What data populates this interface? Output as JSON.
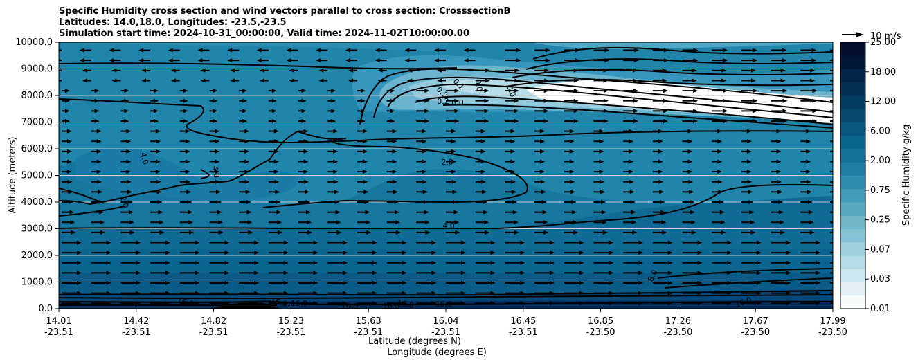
{
  "title": {
    "line1": "Specific Humidity cross section and wind vectors parallel to cross section: CrosssectionB",
    "line2": "Latitudes: 14.0,18.0, Longitudes: -23.5,-23.5",
    "line3": "Simulation start time: 2024-10-31_00:00:00, Valid time: 2024-11-02T10:00:00.00"
  },
  "quiver_key": {
    "label": "10 m/s"
  },
  "colorbar": {
    "label": "Specific Humidity g/kg",
    "levels": [
      "0.01",
      "0.03",
      "0.07",
      "0.25",
      "0.75",
      "2.00",
      "6.00",
      "12.00",
      "18.00",
      "25.00"
    ],
    "colors": [
      "#f7fbfc",
      "#e3f1f5",
      "#cce6ee",
      "#b5dbe6",
      "#9dcfdd",
      "#86c3d4",
      "#6fb6cb",
      "#58a9c2",
      "#429cb8",
      "#2f8eae",
      "#1f80a3",
      "#137296",
      "#0b6489",
      "#08577c",
      "#064a6f",
      "#053d62",
      "#043055",
      "#032448",
      "#02183b",
      "#020f2f"
    ]
  },
  "chart_data": {
    "type": "contourf",
    "title": "Specific Humidity cross section and wind vectors parallel to cross section: CrosssectionB",
    "xlabel_lat": "Latitude (degrees N)",
    "xlabel_lon": "Longitude (degrees E)",
    "ylabel": "Altitude (meters)",
    "ylim": [
      0,
      10000
    ],
    "yticks": [
      "0.0",
      "1000.0",
      "2000.0",
      "3000.0",
      "4000.0",
      "5000.0",
      "6000.0",
      "7000.0",
      "8000.0",
      "9000.0",
      "10000.0"
    ],
    "xticks_lat": [
      "14.01",
      "14.42",
      "14.82",
      "15.23",
      "15.63",
      "16.04",
      "16.45",
      "16.85",
      "17.26",
      "17.67",
      "17.99"
    ],
    "xticks_lon": [
      "-23.51",
      "-23.51",
      "-23.51",
      "-23.51",
      "-23.51",
      "-23.51",
      "-23.51",
      "-23.50",
      "-23.50",
      "-23.50",
      "-23.50"
    ],
    "contour_labels": [
      "16.0",
      "16.0",
      "16.0",
      "16.0",
      "16.0",
      "16.0",
      "16.0",
      "16.0",
      "8.0",
      "4.0",
      "2.0",
      "2.0",
      "4.0",
      "4.0",
      "0.2",
      "0.2",
      "0.1",
      "0.0",
      "0.0",
      "0.0"
    ],
    "grid": "horizontal",
    "units": "g/kg"
  }
}
